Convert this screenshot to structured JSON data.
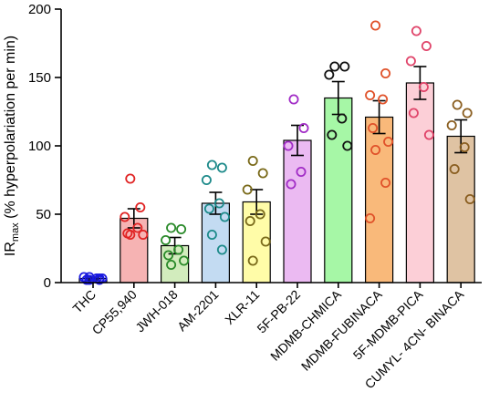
{
  "chart_data": {
    "type": "bar",
    "title": "",
    "xlabel": "",
    "ylabel": {
      "main": "IR",
      "subscript": "max",
      "rest": " (% hyperpolariation per min)"
    },
    "ylim": [
      0,
      200
    ],
    "yticks": [
      "0",
      "50",
      "100",
      "150",
      "200"
    ],
    "grid": false,
    "legend": "none",
    "error_bars": "mean ± SEM",
    "categories": [
      "THC",
      "CP55,940",
      "JWH-018",
      "AM-2201",
      "XLR-11",
      "5F-PB-22",
      "MDMB-CHMICA",
      "MDMB-FUBINACA",
      "5F-MDMB-PICA",
      "CUMYL- 4CN- BINACA"
    ],
    "values": [
      3,
      47,
      27,
      58,
      59,
      104,
      135,
      121,
      146,
      107
    ],
    "errors": [
      1,
      7,
      6,
      8,
      9,
      11,
      12,
      12,
      12,
      12
    ],
    "points": [
      [
        2,
        3,
        4,
        3,
        2,
        3,
        4,
        2
      ],
      [
        76,
        55,
        48,
        40,
        36,
        35,
        35
      ],
      [
        40,
        39,
        31,
        24,
        20,
        16,
        13
      ],
      [
        86,
        84,
        75,
        58,
        54,
        48,
        35,
        24
      ],
      [
        89,
        80,
        68,
        50,
        45,
        30,
        16
      ],
      [
        134,
        113,
        100,
        81,
        72
      ],
      [
        158,
        158,
        152,
        120,
        108,
        100
      ],
      [
        188,
        153,
        137,
        134,
        113,
        103,
        97,
        73,
        47
      ],
      [
        184,
        173,
        162,
        143,
        124,
        108
      ],
      [
        130,
        124,
        115,
        99,
        83,
        61
      ]
    ],
    "colors": {
      "fills": [
        "#a9a9f7",
        "#f6b3b3",
        "#d2ecbd",
        "#c3dbf2",
        "#fffca8",
        "#ebbaf2",
        "#a6f7a6",
        "#f9b97a",
        "#fccfd7",
        "#dfc3a3"
      ],
      "points": [
        "#1919e0",
        "#e02323",
        "#2a8a2a",
        "#1d8a8a",
        "#7a6a1a",
        "#a12cc6",
        "#111111",
        "#e0522a",
        "#e0446a",
        "#8a5e20"
      ]
    }
  }
}
